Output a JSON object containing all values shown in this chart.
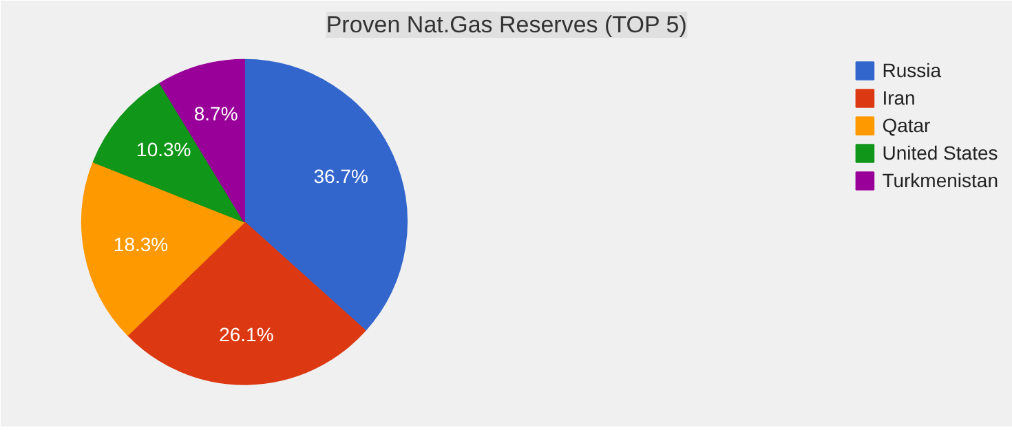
{
  "chart_data": {
    "type": "pie",
    "title": "Proven Nat.Gas Reserves (TOP 5)",
    "categories": [
      "Russia",
      "Iran",
      "Qatar",
      "United States",
      "Turkmenistan"
    ],
    "values": [
      36.7,
      26.1,
      18.3,
      10.3,
      8.7
    ],
    "colors": [
      "#3366cc",
      "#dc3912",
      "#ff9900",
      "#109618",
      "#990099"
    ],
    "value_labels": [
      "36.7%",
      "26.1%",
      "18.3%",
      "10.3%",
      "8.7%"
    ],
    "legend": "top right"
  }
}
